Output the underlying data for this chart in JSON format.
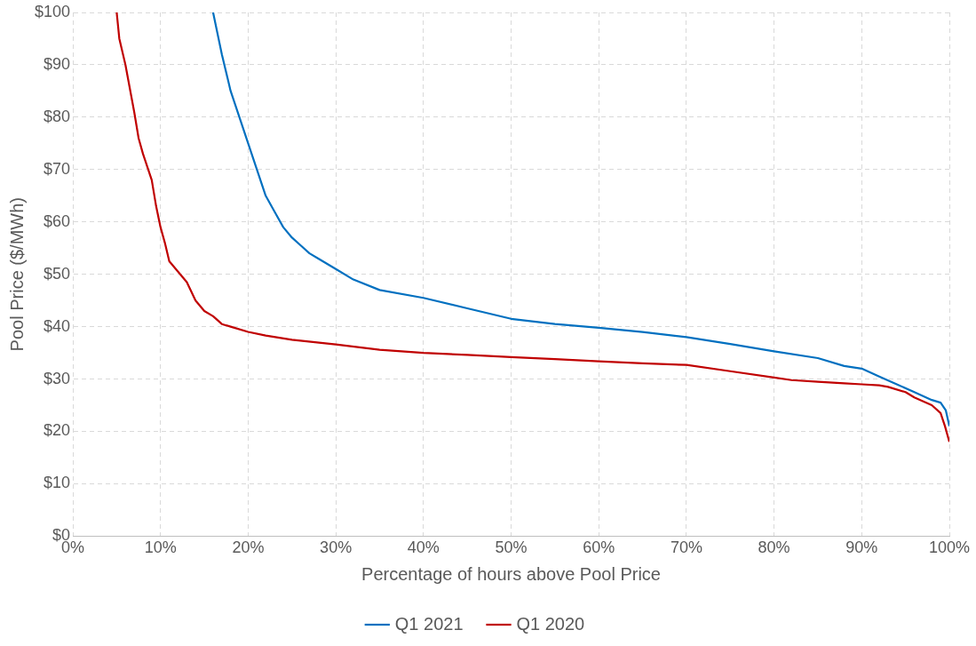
{
  "chart_data": {
    "type": "line",
    "xlabel": "Percentage of hours above Pool Price",
    "ylabel": "Pool Price ($/MWh)",
    "xlim": [
      0,
      100
    ],
    "ylim": [
      0,
      100
    ],
    "xticks": [
      {
        "value": 0,
        "label": "0%"
      },
      {
        "value": 10,
        "label": "10%"
      },
      {
        "value": 20,
        "label": "20%"
      },
      {
        "value": 30,
        "label": "30%"
      },
      {
        "value": 40,
        "label": "40%"
      },
      {
        "value": 50,
        "label": "50%"
      },
      {
        "value": 60,
        "label": "60%"
      },
      {
        "value": 70,
        "label": "70%"
      },
      {
        "value": 80,
        "label": "80%"
      },
      {
        "value": 90,
        "label": "90%"
      },
      {
        "value": 100,
        "label": "100%"
      }
    ],
    "yticks": [
      {
        "value": 0,
        "label": "$0"
      },
      {
        "value": 10,
        "label": "$10"
      },
      {
        "value": 20,
        "label": "$20"
      },
      {
        "value": 30,
        "label": "$30"
      },
      {
        "value": 40,
        "label": "$40"
      },
      {
        "value": 50,
        "label": "$50"
      },
      {
        "value": 60,
        "label": "$60"
      },
      {
        "value": 70,
        "label": "$70"
      },
      {
        "value": 80,
        "label": "$80"
      },
      {
        "value": 90,
        "label": "$90"
      },
      {
        "value": 100,
        "label": "$100"
      }
    ],
    "grid": true,
    "legend": "bottom",
    "marker": "none",
    "line_style": "solid",
    "series": [
      {
        "name": "Q1 2021",
        "color": "#0070c0",
        "x": [
          16,
          17,
          18,
          19,
          20,
          21,
          22,
          23,
          24,
          25,
          26,
          27,
          28,
          30,
          32,
          35,
          40,
          45,
          50,
          55,
          60,
          65,
          70,
          75,
          80,
          85,
          88,
          90,
          92,
          94,
          96,
          98,
          99,
          99.6,
          100
        ],
        "values": [
          100,
          92,
          85,
          80,
          75,
          70,
          65,
          62,
          59,
          57,
          55.5,
          54,
          53,
          51,
          49,
          47,
          45.5,
          43.5,
          41.5,
          40.5,
          39.8,
          39,
          38,
          36.7,
          35.3,
          34,
          32.5,
          32,
          30.5,
          29,
          27.5,
          26,
          25.5,
          24,
          21
        ]
      },
      {
        "name": "Q1 2020",
        "color": "#c00000",
        "x": [
          5,
          5.3,
          6,
          7,
          7.5,
          8,
          9,
          9.5,
          10,
          10.5,
          11,
          12,
          13,
          14,
          15,
          16,
          17,
          18,
          20,
          22,
          25,
          30,
          35,
          40,
          45,
          50,
          55,
          60,
          65,
          70,
          75,
          80,
          82,
          85,
          88,
          90,
          92,
          93,
          95,
          96,
          98,
          99,
          99.5,
          100
        ],
        "values": [
          100,
          95,
          90,
          81,
          76,
          73,
          68,
          63,
          59,
          56,
          52.5,
          50.5,
          48.5,
          45,
          43,
          42,
          40.5,
          40,
          39,
          38.3,
          37.5,
          36.6,
          35.6,
          35,
          34.6,
          34.2,
          33.8,
          33.4,
          33,
          32.7,
          31.5,
          30.3,
          29.8,
          29.5,
          29.2,
          29,
          28.8,
          28.5,
          27.5,
          26.5,
          25,
          23.5,
          21,
          18
        ]
      }
    ]
  }
}
